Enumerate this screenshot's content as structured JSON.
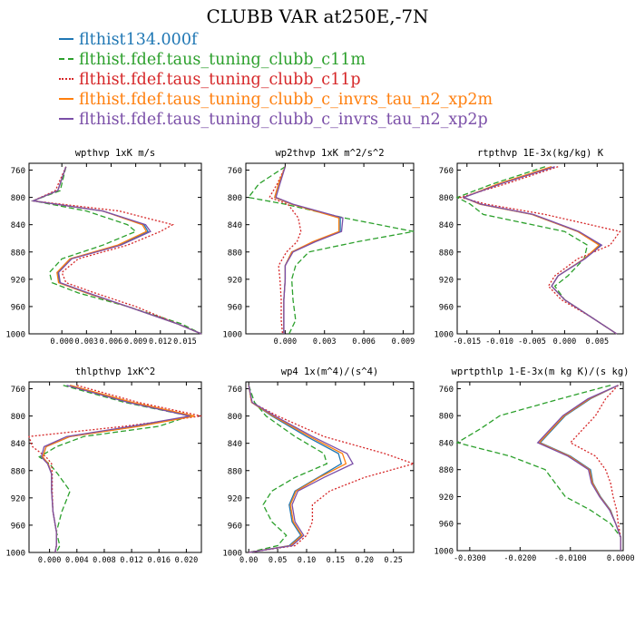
{
  "figure": {
    "title": "CLUBB VAR at250E,-7N"
  },
  "legend": [
    {
      "name": "flthist134.000f",
      "color": "#1f77b4",
      "dash": "solid"
    },
    {
      "name": "flthist.fdef.taus_tuning_clubb_c11m",
      "color": "#2ca02c",
      "dash": "dash"
    },
    {
      "name": "flthist.fdef.taus_tuning_clubb_c11p",
      "color": "#d62728",
      "dash": "dot"
    },
    {
      "name": "flthist.fdef.taus_tuning_clubb_c_invrs_tau_n2_xp2m",
      "color": "#ff7f0e",
      "dash": "solid"
    },
    {
      "name": "flthist.fdef.taus_tuning_clubb_c_invrs_tau_n2_xp2p",
      "color": "#7b4fa8",
      "dash": "solid"
    }
  ],
  "chart_data": [
    {
      "type": "line",
      "title": "wpthvp  1xK m/s",
      "xlim": [
        -0.004,
        0.017
      ],
      "ylim": [
        1000,
        750
      ],
      "y_reversed": true,
      "xticks": [
        0.0,
        0.003,
        0.006,
        0.009,
        0.012,
        0.015
      ],
      "xtick_labels": [
        "0.000",
        "0.003",
        "0.006",
        "0.009",
        "0.012",
        "0.015"
      ],
      "yticks": [
        760,
        800,
        840,
        880,
        920,
        960,
        1000
      ],
      "y": [
        755,
        790,
        805,
        820,
        840,
        850,
        870,
        890,
        910,
        925,
        940,
        960,
        985,
        1000
      ],
      "series": [
        {
          "values": [
            0.0005,
            -0.0005,
            -0.0035,
            0.005,
            0.01,
            0.0105,
            0.007,
            0.001,
            -0.0005,
            -0.0003,
            0.003,
            0.008,
            0.014,
            0.017
          ]
        },
        {
          "values": [
            0.0005,
            -0.0002,
            -0.0035,
            0.003,
            0.008,
            0.009,
            0.005,
            0.0,
            -0.0015,
            -0.0012,
            0.002,
            0.008,
            0.0145,
            0.017
          ]
        },
        {
          "values": [
            0.0005,
            -0.0008,
            -0.0035,
            0.007,
            0.0135,
            0.012,
            0.008,
            0.002,
            0.0,
            0.0005,
            0.004,
            0.009,
            0.014,
            0.017
          ]
        },
        {
          "values": [
            0.0005,
            -0.0005,
            -0.0035,
            0.005,
            0.0098,
            0.0103,
            0.0068,
            0.001,
            -0.0006,
            -0.0004,
            0.003,
            0.008,
            0.014,
            0.017
          ]
        },
        {
          "values": [
            0.0005,
            -0.0005,
            -0.0035,
            0.005,
            0.0102,
            0.0108,
            0.0072,
            0.0012,
            -0.0004,
            -0.0002,
            0.0032,
            0.008,
            0.014,
            0.017
          ]
        }
      ]
    },
    {
      "type": "line",
      "title": "wp2thvp  1xK m^2/s^2",
      "xlim": [
        -0.003,
        0.0098
      ],
      "ylim": [
        1000,
        750
      ],
      "y_reversed": true,
      "xticks": [
        0.0,
        0.003,
        0.006,
        0.009
      ],
      "xtick_labels": [
        "0.000",
        "0.003",
        "0.006",
        "0.009"
      ],
      "yticks": [
        760,
        800,
        840,
        880,
        920,
        960,
        1000
      ],
      "y": [
        755,
        780,
        800,
        810,
        830,
        850,
        865,
        880,
        900,
        920,
        950,
        980,
        1000
      ],
      "series": [
        {
          "values": [
            0.0,
            -0.0005,
            -0.0008,
            0.0005,
            0.0042,
            0.0042,
            0.0022,
            0.0005,
            0.0,
            0.0,
            -0.0001,
            -0.0001,
            -0.0001
          ]
        },
        {
          "values": [
            0.0,
            -0.002,
            -0.0028,
            0.0,
            0.0045,
            0.0098,
            0.0055,
            0.0018,
            0.0008,
            0.0005,
            0.0006,
            0.0008,
            0.0003
          ]
        },
        {
          "values": [
            0.0,
            -0.0006,
            -0.0012,
            0.0002,
            0.001,
            0.0012,
            0.0009,
            0.0001,
            -0.0005,
            -0.0004,
            -0.0003,
            -0.0003,
            -0.0002
          ]
        },
        {
          "values": [
            0.0,
            -0.0005,
            -0.0008,
            0.0005,
            0.0041,
            0.0041,
            0.0021,
            0.0005,
            0.0,
            0.0,
            -0.0001,
            -0.0001,
            -0.0001
          ]
        },
        {
          "values": [
            0.0,
            -0.0004,
            -0.0007,
            0.0006,
            0.0044,
            0.0043,
            0.0023,
            0.0006,
            0.0,
            0.0,
            -0.0001,
            -0.0001,
            -0.0001
          ]
        }
      ]
    },
    {
      "type": "line",
      "title": "rtpthvp  1E-3x(kg/kg) K",
      "xlim": [
        -0.0165,
        0.009
      ],
      "ylim": [
        1000,
        750
      ],
      "y_reversed": true,
      "xticks": [
        -0.015,
        -0.01,
        -0.005,
        0.0,
        0.005
      ],
      "xtick_labels": [
        "-0.015",
        "-0.010",
        "-0.005",
        "0.000",
        "0.005"
      ],
      "yticks": [
        760,
        800,
        840,
        880,
        920,
        960,
        1000
      ],
      "y": [
        755,
        780,
        800,
        810,
        825,
        850,
        870,
        890,
        915,
        930,
        950,
        975,
        1000
      ],
      "series": [
        {
          "values": [
            -0.002,
            -0.01,
            -0.0155,
            -0.013,
            -0.005,
            0.002,
            0.0055,
            0.003,
            -0.001,
            -0.002,
            0.0,
            0.004,
            0.008
          ]
        },
        {
          "values": [
            -0.003,
            -0.011,
            -0.0165,
            -0.0145,
            -0.0125,
            0.0,
            0.0035,
            0.003,
            0.0005,
            -0.0015,
            0.0,
            0.004,
            0.008
          ]
        },
        {
          "values": [
            -0.001,
            -0.009,
            -0.016,
            -0.012,
            -0.003,
            0.0085,
            0.007,
            0.002,
            -0.0015,
            -0.0025,
            -0.0005,
            0.004,
            0.008
          ]
        },
        {
          "values": [
            -0.002,
            -0.0102,
            -0.0155,
            -0.013,
            -0.005,
            0.002,
            0.0053,
            0.003,
            -0.001,
            -0.002,
            0.0,
            0.004,
            0.008
          ]
        },
        {
          "values": [
            -0.0015,
            -0.0098,
            -0.0155,
            -0.0128,
            -0.0048,
            0.0022,
            0.0057,
            0.0031,
            -0.001,
            -0.002,
            0.0,
            0.004,
            0.008
          ]
        }
      ]
    },
    {
      "type": "line",
      "title": "thlpthvp  1xK^2",
      "xlim": [
        -0.003,
        0.0222
      ],
      "ylim": [
        1000,
        750
      ],
      "y_reversed": true,
      "xticks": [
        0.0,
        0.004,
        0.008,
        0.012,
        0.016,
        0.02
      ],
      "xtick_labels": [
        "0.000",
        "0.004",
        "0.008",
        "0.012",
        "0.016",
        "0.020"
      ],
      "yticks": [
        760,
        800,
        840,
        880,
        920,
        960,
        1000
      ],
      "y": [
        755,
        780,
        800,
        815,
        830,
        845,
        860,
        870,
        885,
        910,
        940,
        970,
        990,
        1000
      ],
      "series": [
        {
          "values": [
            0.003,
            0.012,
            0.021,
            0.013,
            0.003,
            -0.0005,
            -0.001,
            -0.0002,
            0.0003,
            0.0003,
            0.0005,
            0.001,
            0.001,
            0.0008
          ]
        },
        {
          "values": [
            0.002,
            0.011,
            0.0205,
            0.016,
            0.005,
            0.001,
            -0.0015,
            0.0,
            0.0012,
            0.003,
            0.0018,
            0.001,
            0.0015,
            0.001
          ]
        },
        {
          "values": [
            0.004,
            0.013,
            0.0222,
            0.011,
            -0.003,
            -0.0025,
            -0.0005,
            0.0003,
            0.0004,
            0.0004,
            0.0005,
            0.001,
            0.001,
            0.0008
          ]
        },
        {
          "values": [
            0.003,
            0.0122,
            0.0212,
            0.0132,
            0.003,
            -0.0005,
            -0.001,
            -0.0002,
            0.0003,
            0.0003,
            0.0005,
            0.001,
            0.001,
            0.0008
          ]
        },
        {
          "values": [
            0.0025,
            0.0115,
            0.0205,
            0.012,
            0.0025,
            -0.0008,
            -0.0012,
            -0.0003,
            0.0003,
            0.0003,
            0.0005,
            0.001,
            0.001,
            0.0008
          ]
        }
      ]
    },
    {
      "type": "line",
      "title": "wp4  1x(m^4)/(s^4)",
      "xlim": [
        -0.005,
        0.285
      ],
      "ylim": [
        1000,
        750
      ],
      "y_reversed": true,
      "xticks": [
        0.0,
        0.05,
        0.1,
        0.15,
        0.2,
        0.25
      ],
      "xtick_labels": [
        "0.00",
        "0.05",
        "0.10",
        "0.15",
        "0.20",
        "0.25"
      ],
      "yticks": [
        760,
        800,
        840,
        880,
        920,
        960,
        1000
      ],
      "y": [
        755,
        780,
        800,
        830,
        855,
        870,
        890,
        910,
        930,
        955,
        975,
        990,
        1000
      ],
      "series": [
        {
          "values": [
            0.0,
            0.005,
            0.04,
            0.1,
            0.155,
            0.16,
            0.12,
            0.08,
            0.07,
            0.075,
            0.09,
            0.07,
            0.0
          ]
        },
        {
          "values": [
            0.0,
            0.01,
            0.03,
            0.08,
            0.13,
            0.135,
            0.08,
            0.04,
            0.025,
            0.04,
            0.065,
            0.05,
            0.0
          ]
        },
        {
          "values": [
            0.0,
            0.005,
            0.05,
            0.13,
            0.235,
            0.285,
            0.2,
            0.14,
            0.11,
            0.11,
            0.1,
            0.08,
            0.0
          ]
        },
        {
          "values": [
            0.0,
            0.005,
            0.042,
            0.105,
            0.162,
            0.168,
            0.122,
            0.082,
            0.072,
            0.077,
            0.092,
            0.072,
            0.0
          ]
        },
        {
          "values": [
            0.0,
            0.006,
            0.045,
            0.11,
            0.17,
            0.18,
            0.13,
            0.085,
            0.075,
            0.08,
            0.095,
            0.075,
            0.0
          ]
        }
      ]
    },
    {
      "type": "line",
      "title": "wprtpthlp  1-E-3x(m kg K)/(s kg)",
      "xlim": [
        -0.0325,
        0.0005
      ],
      "ylim": [
        1000,
        750
      ],
      "y_reversed": true,
      "xticks": [
        -0.03,
        -0.02,
        -0.01,
        0.0
      ],
      "xtick_labels": [
        "-0.0300",
        "-0.0200",
        "-0.0100",
        "0.0000"
      ],
      "yticks": [
        760,
        800,
        840,
        880,
        920,
        960,
        1000
      ],
      "y": [
        755,
        775,
        800,
        820,
        840,
        860,
        880,
        900,
        920,
        940,
        960,
        980,
        1000
      ],
      "series": [
        {
          "values": [
            -0.0005,
            -0.006,
            -0.011,
            -0.0135,
            -0.016,
            -0.01,
            -0.006,
            -0.0055,
            -0.004,
            -0.002,
            -0.001,
            0.0,
            0.0
          ]
        },
        {
          "values": [
            -0.002,
            -0.012,
            -0.024,
            -0.028,
            -0.0325,
            -0.022,
            -0.015,
            -0.013,
            -0.011,
            -0.006,
            -0.002,
            0.0,
            0.0
          ]
        },
        {
          "values": [
            -0.0005,
            -0.003,
            -0.005,
            -0.0075,
            -0.01,
            -0.005,
            -0.003,
            -0.002,
            -0.0015,
            -0.0008,
            -0.0005,
            0.0,
            0.0
          ]
        },
        {
          "values": [
            -0.0005,
            -0.0062,
            -0.0112,
            -0.0137,
            -0.0162,
            -0.0102,
            -0.0062,
            -0.0056,
            -0.0041,
            -0.0021,
            -0.001,
            0.0,
            0.0
          ]
        },
        {
          "values": [
            -0.0005,
            -0.0065,
            -0.0115,
            -0.014,
            -0.0165,
            -0.0105,
            -0.0064,
            -0.0058,
            -0.0042,
            -0.0022,
            -0.001,
            0.0,
            0.0
          ]
        }
      ]
    }
  ]
}
